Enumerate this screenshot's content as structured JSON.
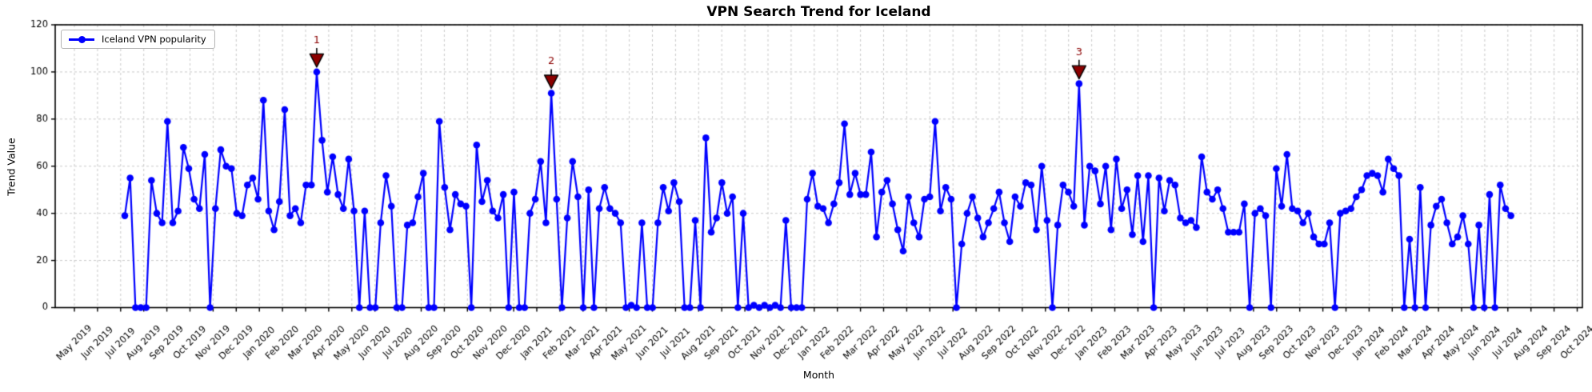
{
  "figure": {
    "title": "VPN Search Trend for Iceland"
  },
  "axes": {
    "x_label": "Month",
    "y_label": "Trend Value"
  },
  "legend": {
    "label": "Iceland VPN popularity"
  },
  "colors": {
    "line": "#0000ff",
    "marker": "#0000ff",
    "annotation_fill": "#8b0000",
    "annotation_edge": "#000000",
    "annotation_text": "#8b0000",
    "grid": "#c9c9c9",
    "axis": "#000000",
    "background": "#ffffff"
  },
  "chart_data": {
    "type": "line",
    "title": "VPN Search Trend for Iceland",
    "xlabel": "Month",
    "ylabel": "Trend Value",
    "ylim": [
      0,
      120
    ],
    "yticks": [
      0,
      20,
      40,
      60,
      80,
      100,
      120
    ],
    "grid": true,
    "legend_position": "upper left",
    "x_tick_labels": [
      "May 2019",
      "Jun 2019",
      "Jul 2019",
      "Aug 2019",
      "Sep 2019",
      "Oct 2019",
      "Nov 2019",
      "Dec 2019",
      "Jan 2020",
      "Feb 2020",
      "Mar 2020",
      "Apr 2020",
      "May 2020",
      "Jun 2020",
      "Jul 2020",
      "Aug 2020",
      "Sep 2020",
      "Oct 2020",
      "Nov 2020",
      "Dec 2020",
      "Jan 2021",
      "Feb 2021",
      "Mar 2021",
      "Apr 2021",
      "May 2021",
      "Jun 2021",
      "Jul 2021",
      "Aug 2021",
      "Sep 2021",
      "Oct 2021",
      "Nov 2021",
      "Dec 2021",
      "Jan 2022",
      "Feb 2022",
      "Mar 2022",
      "Apr 2022",
      "May 2022",
      "Jun 2022",
      "Jul 2022",
      "Aug 2022",
      "Sep 2022",
      "Oct 2022",
      "Nov 2022",
      "Dec 2022",
      "Jan 2023",
      "Feb 2023",
      "Mar 2023",
      "Apr 2023",
      "May 2023",
      "Jun 2023",
      "Jul 2023",
      "Aug 2023",
      "Sep 2023",
      "Oct 2023",
      "Nov 2023",
      "Dec 2023",
      "Jan 2024",
      "Feb 2024",
      "Mar 2024",
      "Apr 2024",
      "May 2024",
      "Jun 2024",
      "Jul 2024",
      "Aug 2024",
      "Sep 2024",
      "Oct 2024"
    ],
    "series": [
      {
        "name": "Iceland VPN popularity",
        "cadence": "weekly",
        "values": [
          39,
          55,
          0,
          0,
          0,
          54,
          40,
          36,
          79,
          36,
          41,
          68,
          59,
          46,
          42,
          65,
          0,
          42,
          67,
          60,
          59,
          40,
          39,
          52,
          55,
          46,
          88,
          41,
          33,
          45,
          84,
          39,
          42,
          36,
          52,
          52,
          100,
          71,
          49,
          64,
          48,
          42,
          63,
          41,
          0,
          41,
          0,
          0,
          36,
          56,
          43,
          0,
          0,
          35,
          36,
          47,
          57,
          0,
          0,
          79,
          51,
          33,
          48,
          44,
          43,
          0,
          69,
          45,
          54,
          41,
          38,
          48,
          0,
          49,
          0,
          0,
          40,
          46,
          62,
          36,
          91,
          46,
          0,
          38,
          62,
          47,
          0,
          50,
          0,
          42,
          51,
          42,
          40,
          36,
          0,
          1,
          0,
          36,
          0,
          0,
          36,
          51,
          41,
          53,
          45,
          0,
          0,
          37,
          0,
          72,
          32,
          38,
          53,
          40,
          47,
          0,
          40,
          0,
          1,
          0,
          1,
          0,
          1,
          0,
          37,
          0,
          0,
          0,
          46,
          57,
          43,
          42,
          36,
          44,
          53,
          78,
          48,
          57,
          48,
          48,
          66,
          30,
          49,
          54,
          44,
          33,
          24,
          47,
          36,
          30,
          46,
          47,
          79,
          41,
          51,
          46,
          0,
          27,
          40,
          47,
          38,
          30,
          36,
          42,
          49,
          36,
          28,
          47,
          43,
          53,
          52,
          33,
          60,
          37,
          0,
          35,
          52,
          49,
          43,
          95,
          35,
          60,
          58,
          44,
          60,
          33,
          63,
          42,
          50,
          31,
          56,
          28,
          56,
          0,
          55,
          41,
          54,
          52,
          38,
          36,
          37,
          34,
          64,
          49,
          46,
          50,
          42,
          32,
          32,
          32,
          44,
          0,
          40,
          42,
          39,
          0,
          59,
          43,
          65,
          42,
          41,
          36,
          40,
          30,
          27,
          27,
          36,
          0,
          40,
          41,
          42,
          47,
          50,
          56,
          57,
          56,
          49,
          63,
          59,
          56,
          0,
          29,
          0,
          51,
          0,
          35,
          43,
          46,
          36,
          27,
          30,
          39,
          27,
          0,
          35,
          0,
          48,
          0,
          52,
          42,
          39
        ]
      }
    ],
    "annotations": [
      {
        "label": "1",
        "index": 36,
        "value": 100
      },
      {
        "label": "2",
        "index": 80,
        "value": 91
      },
      {
        "label": "3",
        "index": 179,
        "value": 95
      }
    ]
  }
}
